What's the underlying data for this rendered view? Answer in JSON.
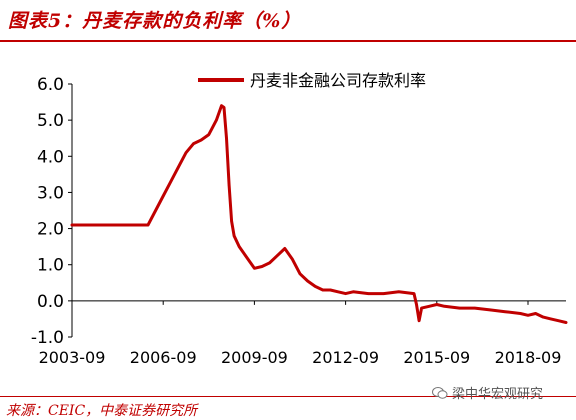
{
  "header": {
    "title": "图表5：丹麦存款的负利率（%）"
  },
  "footer": {
    "source": "来源：CEIC，中泰证券研究所",
    "watermark": "梁中华宏观研究"
  },
  "watermark_icon": "wechat-icon",
  "colors": {
    "title": "#c00000",
    "series": "#c00000",
    "axis": "#000000"
  },
  "chart_data": {
    "type": "line",
    "title": "图表5：丹麦存款的负利率（%）",
    "xlabel": "",
    "ylabel": "",
    "ylim": [
      -1.0,
      6.0
    ],
    "yticks": [
      "6.0",
      "5.0",
      "4.0",
      "3.0",
      "2.0",
      "1.0",
      "0.0",
      "-1.0"
    ],
    "xticks": [
      "2003-09",
      "2006-09",
      "2009-09",
      "2012-09",
      "2015-09",
      "2018-09"
    ],
    "xlim": [
      "2003-09",
      "2019-12"
    ],
    "grid": false,
    "legend": "top-right",
    "series": [
      {
        "name": "丹麦非金融公司存款利率",
        "x": [
          "2003-09",
          "2004-03",
          "2004-09",
          "2005-03",
          "2005-09",
          "2006-03",
          "2006-06",
          "2006-09",
          "2006-12",
          "2007-03",
          "2007-06",
          "2007-09",
          "2007-12",
          "2008-03",
          "2008-06",
          "2008-08",
          "2008-09",
          "2008-10",
          "2008-11",
          "2008-12",
          "2009-01",
          "2009-03",
          "2009-06",
          "2009-09",
          "2009-12",
          "2010-03",
          "2010-06",
          "2010-09",
          "2010-12",
          "2011-03",
          "2011-06",
          "2011-09",
          "2011-12",
          "2012-03",
          "2012-06",
          "2012-09",
          "2012-12",
          "2013-06",
          "2013-12",
          "2014-06",
          "2014-12",
          "2015-01",
          "2015-02",
          "2015-03",
          "2015-06",
          "2015-09",
          "2015-12",
          "2016-06",
          "2016-12",
          "2017-06",
          "2017-12",
          "2018-06",
          "2018-09",
          "2018-12",
          "2019-03",
          "2019-06",
          "2019-09",
          "2019-12"
        ],
        "values": [
          2.1,
          2.1,
          2.1,
          2.1,
          2.1,
          2.1,
          2.5,
          2.9,
          3.3,
          3.7,
          4.1,
          4.35,
          4.45,
          4.6,
          5.0,
          5.4,
          5.35,
          4.5,
          3.2,
          2.2,
          1.8,
          1.5,
          1.2,
          0.9,
          0.95,
          1.05,
          1.25,
          1.45,
          1.15,
          0.75,
          0.55,
          0.4,
          0.3,
          0.3,
          0.25,
          0.2,
          0.25,
          0.2,
          0.2,
          0.25,
          0.2,
          -0.1,
          -0.55,
          -0.2,
          -0.15,
          -0.1,
          -0.15,
          -0.2,
          -0.2,
          -0.25,
          -0.3,
          -0.35,
          -0.4,
          -0.35,
          -0.45,
          -0.5,
          -0.55,
          -0.6
        ]
      }
    ]
  }
}
